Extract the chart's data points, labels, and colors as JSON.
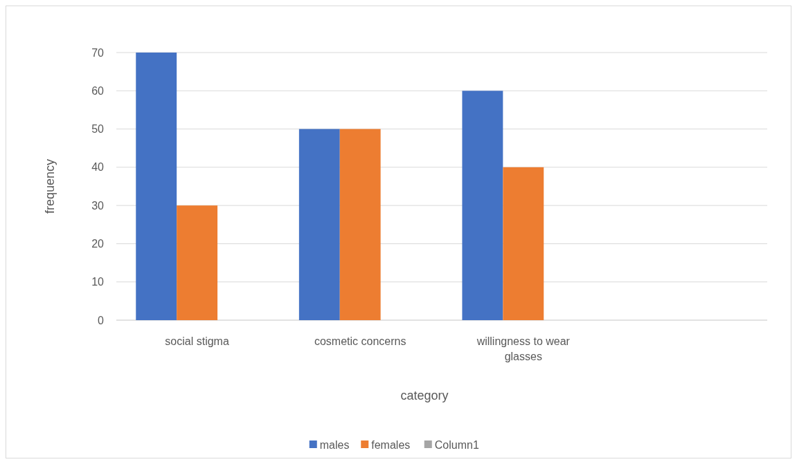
{
  "chart_data": {
    "type": "bar",
    "xlabel": "category",
    "ylabel": "frequency",
    "categories": [
      "social stigma",
      "cosmetic concerns",
      "willingness to wear glasses",
      null
    ],
    "series": [
      {
        "name": "males",
        "color": "#4472c4",
        "values": [
          70,
          50,
          60,
          null
        ]
      },
      {
        "name": "females",
        "color": "#ed7d31",
        "values": [
          30,
          50,
          40,
          null
        ]
      },
      {
        "name": "Column1",
        "color": "#a5a5a5",
        "values": [
          null,
          null,
          null,
          null
        ]
      }
    ],
    "ylim": [
      0,
      70
    ],
    "yticks": [
      0,
      10,
      20,
      30,
      40,
      50,
      60,
      70
    ],
    "grid": "y",
    "legend": "bottom"
  }
}
